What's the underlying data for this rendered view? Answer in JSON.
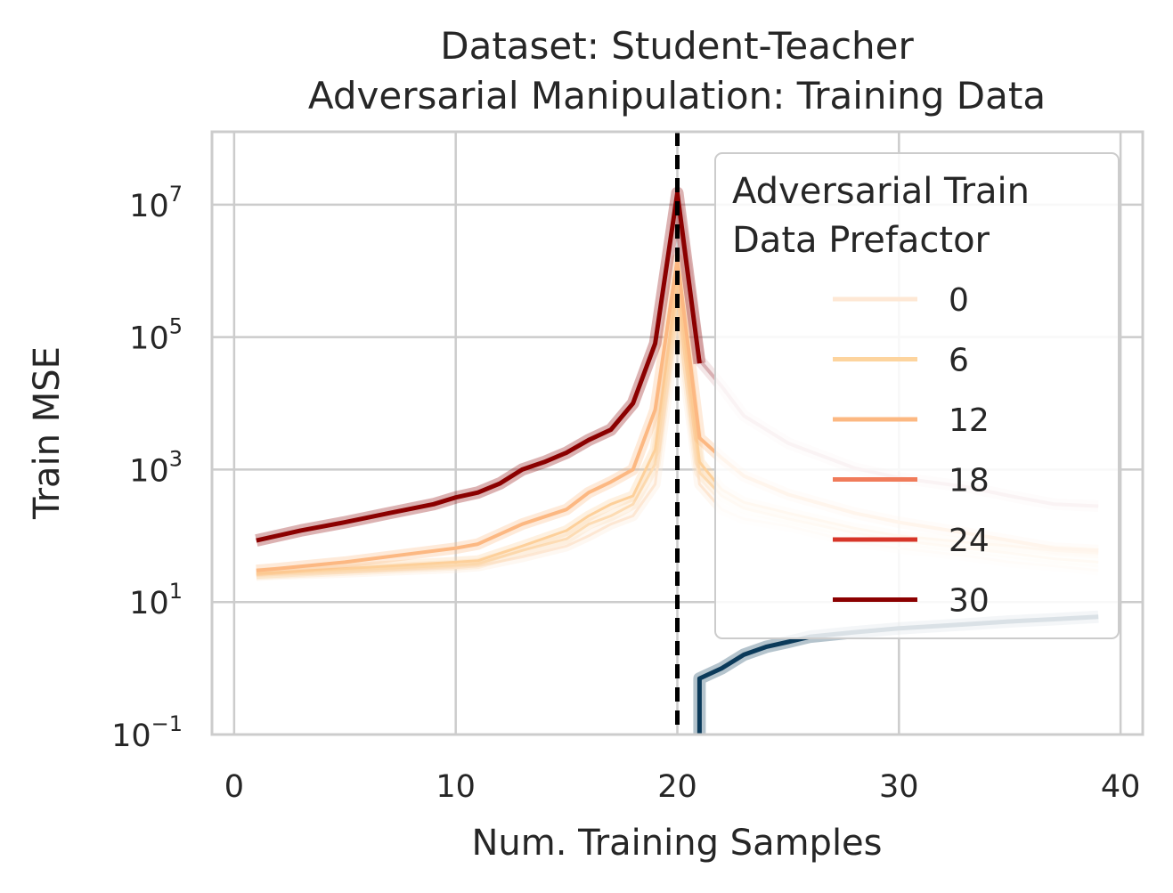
{
  "chart_data": {
    "type": "line",
    "title_lines": [
      "Dataset: Student-Teacher",
      "Adversarial Manipulation: Training Data"
    ],
    "xlabel": "Num. Training Samples",
    "ylabel": "Train MSE",
    "xlim": [
      -1,
      41
    ],
    "ylim_log10": [
      -1,
      8.1
    ],
    "yscale": "log",
    "xticks": [
      0,
      10,
      20,
      30,
      40
    ],
    "yticks": [
      {
        "base": "10",
        "exp": "−1",
        "value": 0.1
      },
      {
        "base": "10",
        "exp": "1",
        "value": 10
      },
      {
        "base": "10",
        "exp": "3",
        "value": 1000
      },
      {
        "base": "10",
        "exp": "5",
        "value": 100000
      },
      {
        "base": "10",
        "exp": "7",
        "value": 10000000
      }
    ],
    "grid": true,
    "interpolation_threshold_x": 20,
    "legend": {
      "title_lines": [
        "Adversarial Train",
        "Data Prefactor"
      ],
      "placement": "top-right",
      "entries": [
        {
          "label": "0",
          "color": "#fee8d5"
        },
        {
          "label": "6",
          "color": "#fdd49e"
        },
        {
          "label": "12",
          "color": "#fcb882"
        },
        {
          "label": "18",
          "color": "#f07b5a"
        },
        {
          "label": "24",
          "color": "#d73528"
        },
        {
          "label": "30",
          "color": "#8b0000"
        }
      ]
    },
    "series": [
      {
        "color": "#fde7d3",
        "width": 3,
        "x": [
          1,
          2,
          5,
          10,
          11,
          13,
          15,
          16,
          17,
          18,
          19,
          20,
          21,
          22,
          23,
          25,
          28,
          30,
          33,
          35,
          37,
          39
        ],
        "y": [
          25,
          26,
          28,
          33,
          35,
          48,
          70,
          100,
          150,
          200,
          600,
          200000,
          600,
          250,
          180,
          140,
          80,
          65,
          50,
          40,
          35,
          30
        ]
      },
      {
        "color": "#fddcb4",
        "width": 3,
        "x": [
          1,
          2,
          5,
          10,
          11,
          13,
          15,
          16,
          17,
          18,
          19,
          20,
          21,
          22,
          23,
          25,
          28,
          30,
          33,
          35,
          37,
          39
        ],
        "y": [
          26,
          27,
          30,
          36,
          38,
          60,
          90,
          150,
          200,
          300,
          1200,
          400000,
          900,
          400,
          260,
          180,
          110,
          85,
          65,
          55,
          45,
          40
        ]
      },
      {
        "color": "#fdd09a",
        "width": 3,
        "x": [
          1,
          2,
          5,
          10,
          11,
          13,
          15,
          16,
          17,
          18,
          19,
          20,
          21,
          22,
          23,
          25,
          28,
          30,
          33,
          35,
          37,
          39
        ],
        "y": [
          27,
          28,
          32,
          40,
          42,
          70,
          120,
          200,
          300,
          400,
          2000,
          800000,
          1300,
          500,
          320,
          220,
          130,
          100,
          80,
          70,
          60,
          55
        ]
      },
      {
        "color": "#fcb882",
        "width": 4,
        "x": [
          1,
          2,
          5,
          10,
          11,
          13,
          15,
          16,
          17,
          18,
          19,
          20,
          21,
          22,
          23,
          25,
          28,
          30,
          33,
          35,
          37,
          39
        ],
        "y": [
          30,
          32,
          40,
          65,
          75,
          150,
          250,
          450,
          650,
          1000,
          8000,
          1500000,
          3000,
          1500,
          800,
          420,
          220,
          160,
          110,
          85,
          65,
          60
        ]
      },
      {
        "color": "#d9b0b3",
        "width": 4,
        "x": [
          20,
          21,
          22,
          23,
          25,
          28,
          30,
          33,
          35,
          37,
          39
        ],
        "y": [
          10000000,
          45000,
          18000,
          6500,
          2500,
          1050,
          750,
          550,
          400,
          300,
          280
        ]
      },
      {
        "color": "#8b0000",
        "width": 5,
        "x": [
          1,
          3,
          5,
          7,
          9,
          10,
          11,
          12,
          13,
          14,
          15,
          16,
          17,
          18,
          19,
          20,
          21
        ],
        "y": [
          85,
          120,
          160,
          220,
          300,
          380,
          450,
          620,
          1000,
          1300,
          1800,
          2800,
          4000,
          10000,
          80000,
          15000000,
          40000
        ]
      },
      {
        "color": "#0b3a5a",
        "width": 5,
        "x": [
          21,
          21,
          22,
          23,
          24,
          25,
          26,
          28,
          30,
          33,
          35,
          37,
          39
        ],
        "y": [
          0.1,
          0.7,
          1.0,
          1.6,
          2.1,
          2.5,
          3.0,
          3.5,
          4.0,
          4.6,
          5.1,
          5.5,
          6.0
        ]
      }
    ]
  }
}
